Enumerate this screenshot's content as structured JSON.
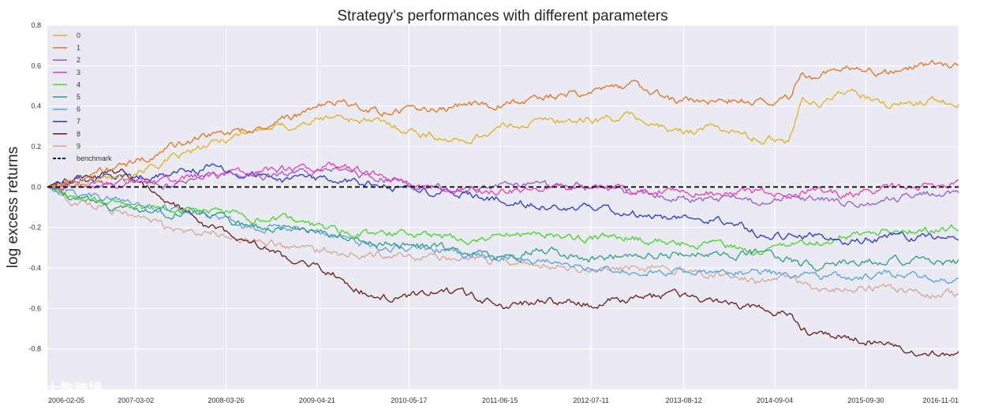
{
  "chart_data": {
    "type": "line",
    "title": "Strategy's performances with different parameters",
    "xlabel": "",
    "ylabel": "log excess returns",
    "ylim": [
      -1.0,
      0.8
    ],
    "yticks": [
      0.8,
      0.6,
      0.4,
      0.2,
      0.0,
      -0.2,
      -0.4,
      -0.6,
      -0.8
    ],
    "ytick_labels": [
      "0.8",
      "0.6",
      "0.4",
      "0.2",
      "0.0",
      "-0.2",
      "-0.4",
      "-0.6",
      "-0.8"
    ],
    "xlim_years": [
      2006.13,
      2016.84
    ],
    "x_tick_labels": [
      "2006-02-05",
      "2007-03-02",
      "2008-03-26",
      "2009-04-21",
      "2010-05-17",
      "2011-06-15",
      "2012-07-11",
      "2013-08-12",
      "2014-09-04",
      "2015-09-30",
      "2016-11-01"
    ],
    "x_tick_positions_years": [
      2006.1,
      2007.17,
      2008.23,
      2009.3,
      2010.38,
      2011.45,
      2012.52,
      2013.61,
      2014.68,
      2015.75,
      2016.84
    ],
    "grid": true,
    "legend_position": "top-left",
    "x": [
      2006.13,
      2006.5,
      2007.0,
      2007.5,
      2008.0,
      2008.5,
      2009.0,
      2009.5,
      2010.0,
      2010.5,
      2011.0,
      2011.5,
      2012.0,
      2012.5,
      2013.0,
      2013.5,
      2014.0,
      2014.5,
      2014.85,
      2015.0,
      2015.2,
      2015.5,
      2016.0,
      2016.5,
      2016.84
    ],
    "series": [
      {
        "name": "0",
        "color": "#e0b020",
        "values": [
          0.0,
          0.02,
          0.06,
          0.12,
          0.2,
          0.28,
          0.3,
          0.35,
          0.32,
          0.27,
          0.22,
          0.3,
          0.33,
          0.33,
          0.35,
          0.27,
          0.3,
          0.23,
          0.24,
          0.45,
          0.4,
          0.48,
          0.4,
          0.43,
          0.42
        ]
      },
      {
        "name": "1",
        "color": "#e37222",
        "values": [
          0.0,
          0.05,
          0.1,
          0.18,
          0.26,
          0.28,
          0.35,
          0.42,
          0.38,
          0.37,
          0.4,
          0.41,
          0.45,
          0.47,
          0.5,
          0.43,
          0.43,
          0.42,
          0.45,
          0.57,
          0.54,
          0.6,
          0.57,
          0.61,
          0.6
        ]
      },
      {
        "name": "2",
        "color": "#9b59d0",
        "values": [
          0.0,
          0.01,
          0.02,
          0.01,
          0.05,
          0.05,
          0.06,
          0.08,
          0.05,
          0.0,
          -0.01,
          0.01,
          0.0,
          0.01,
          -0.03,
          -0.05,
          -0.06,
          -0.07,
          -0.05,
          -0.07,
          -0.06,
          -0.08,
          -0.06,
          -0.03,
          -0.02
        ]
      },
      {
        "name": "3",
        "color": "#ec3bb8",
        "values": [
          0.0,
          0.0,
          0.01,
          0.03,
          0.06,
          0.08,
          0.09,
          0.11,
          0.06,
          0.0,
          -0.01,
          -0.02,
          -0.02,
          0.0,
          -0.02,
          -0.02,
          -0.03,
          -0.03,
          -0.04,
          -0.02,
          -0.02,
          -0.04,
          0.0,
          0.01,
          0.01
        ]
      },
      {
        "name": "4",
        "color": "#47d22d",
        "values": [
          0.0,
          -0.06,
          -0.1,
          -0.1,
          -0.12,
          -0.15,
          -0.17,
          -0.21,
          -0.23,
          -0.23,
          -0.26,
          -0.24,
          -0.23,
          -0.25,
          -0.25,
          -0.28,
          -0.28,
          -0.32,
          -0.29,
          -0.26,
          -0.27,
          -0.24,
          -0.21,
          -0.22,
          -0.21
        ]
      },
      {
        "name": "5",
        "color": "#2e9c89",
        "values": [
          0.0,
          -0.06,
          -0.11,
          -0.13,
          -0.13,
          -0.2,
          -0.21,
          -0.23,
          -0.27,
          -0.29,
          -0.32,
          -0.34,
          -0.31,
          -0.35,
          -0.34,
          -0.33,
          -0.33,
          -0.33,
          -0.36,
          -0.38,
          -0.39,
          -0.37,
          -0.36,
          -0.37,
          -0.37
        ]
      },
      {
        "name": "6",
        "color": "#5aa0e0",
        "values": [
          0.0,
          -0.04,
          -0.07,
          -0.1,
          -0.13,
          -0.2,
          -0.2,
          -0.24,
          -0.3,
          -0.29,
          -0.33,
          -0.35,
          -0.36,
          -0.39,
          -0.42,
          -0.41,
          -0.43,
          -0.42,
          -0.43,
          -0.43,
          -0.45,
          -0.45,
          -0.43,
          -0.45,
          -0.46
        ]
      },
      {
        "name": "7",
        "color": "#2a36cc",
        "values": [
          0.0,
          0.03,
          0.05,
          0.06,
          0.1,
          0.07,
          0.03,
          0.04,
          0.01,
          -0.01,
          -0.04,
          -0.06,
          -0.1,
          -0.1,
          -0.13,
          -0.16,
          -0.16,
          -0.23,
          -0.24,
          -0.25,
          -0.24,
          -0.27,
          -0.24,
          -0.25,
          -0.24
        ]
      },
      {
        "name": "8",
        "color": "#6b1a1a",
        "values": [
          0.0,
          0.05,
          0.07,
          -0.05,
          -0.2,
          -0.27,
          -0.36,
          -0.43,
          -0.55,
          -0.53,
          -0.52,
          -0.6,
          -0.56,
          -0.58,
          -0.55,
          -0.54,
          -0.57,
          -0.6,
          -0.63,
          -0.7,
          -0.74,
          -0.74,
          -0.78,
          -0.83,
          -0.82
        ]
      },
      {
        "name": "9",
        "color": "#d4a59a",
        "values": [
          0.0,
          -0.08,
          -0.12,
          -0.2,
          -0.22,
          -0.26,
          -0.3,
          -0.32,
          -0.33,
          -0.34,
          -0.34,
          -0.37,
          -0.38,
          -0.42,
          -0.4,
          -0.4,
          -0.43,
          -0.47,
          -0.45,
          -0.48,
          -0.51,
          -0.5,
          -0.5,
          -0.53,
          -0.53
        ]
      },
      {
        "name": "benchmark",
        "color": "#1a1a1a",
        "dashed": true,
        "values": [
          0.0,
          0.0,
          0.0,
          0.0,
          0.0,
          0.0,
          0.0,
          0.0,
          0.0,
          0.0,
          0.0,
          0.0,
          0.0,
          0.0,
          0.0,
          0.0,
          0.0,
          0.0,
          0.0,
          0.0,
          0.0,
          0.0,
          0.0,
          0.0,
          0.0
        ]
      }
    ]
  },
  "watermark": {
    "text": "大数跨境"
  }
}
